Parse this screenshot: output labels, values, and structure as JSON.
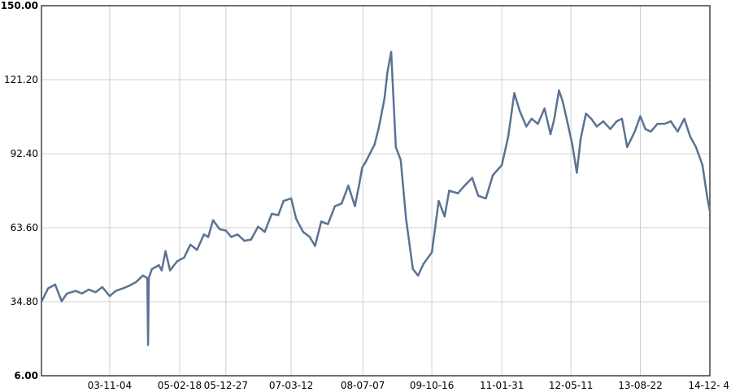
{
  "chart_data": {
    "type": "line",
    "title": "",
    "xlabel": "",
    "ylabel": "",
    "ylim": [
      6.0,
      150.0
    ],
    "xlim": [
      "2002-08-01",
      "2014-12-04"
    ],
    "grid": true,
    "y_ticks": [
      "6.00",
      "34.80",
      "63.60",
      "92.40",
      "121.20",
      "150.00"
    ],
    "x_ticks": [
      "03-11-04",
      "05-02-18",
      "05-12-27",
      "07-03-12",
      "08-07-07",
      "09-10-16",
      "11-01-31",
      "12-05-11",
      "13-08-22",
      "14-12- 4"
    ],
    "x_tick_dates": [
      "2003-11-04",
      "2005-02-18",
      "2005-12-27",
      "2007-03-12",
      "2008-07-07",
      "2009-10-16",
      "2011-01-31",
      "2012-05-11",
      "2013-08-22",
      "2014-12-04"
    ],
    "colors": {
      "line": "#5a7394",
      "grid": "#d0d0d0",
      "axis": "#404040"
    },
    "series": [
      {
        "x": [
          "2002-08-01",
          "2002-09-15",
          "2002-11-01",
          "2002-12-15",
          "2003-01-20",
          "2003-03-20",
          "2003-05-01",
          "2003-06-15",
          "2003-08-01",
          "2003-09-15",
          "2003-11-04",
          "2003-12-15",
          "2004-02-01",
          "2004-03-15",
          "2004-05-01",
          "2004-06-15",
          "2004-07-15",
          "2004-07-20",
          "2004-07-25",
          "2004-08-15",
          "2004-10-01",
          "2004-10-20",
          "2004-11-15",
          "2004-12-15",
          "2005-02-01",
          "2005-03-20",
          "2005-05-01",
          "2005-06-15",
          "2005-08-01",
          "2005-08-30",
          "2005-10-01",
          "2005-11-15",
          "2005-12-27",
          "2006-02-01",
          "2006-03-15",
          "2006-05-01",
          "2006-06-15",
          "2006-08-01",
          "2006-09-15",
          "2006-11-01",
          "2006-12-15",
          "2007-01-20",
          "2007-03-12",
          "2007-04-15",
          "2007-06-01",
          "2007-07-15",
          "2007-08-20",
          "2007-10-01",
          "2007-11-15",
          "2008-01-01",
          "2008-02-15",
          "2008-04-01",
          "2008-05-15",
          "2008-06-15",
          "2008-07-03",
          "2008-07-25",
          "2008-08-20",
          "2008-09-25",
          "2008-10-25",
          "2008-12-01",
          "2008-12-20",
          "2009-01-15",
          "2009-02-15",
          "2009-03-20",
          "2009-04-25",
          "2009-06-10",
          "2009-07-15",
          "2009-08-20",
          "2009-10-16",
          "2009-12-01",
          "2010-01-10",
          "2010-02-10",
          "2010-04-10",
          "2010-05-25",
          "2010-07-15",
          "2010-08-25",
          "2010-10-15",
          "2010-12-01",
          "2011-01-31",
          "2011-03-15",
          "2011-04-25",
          "2011-06-01",
          "2011-07-15",
          "2011-08-20",
          "2011-10-01",
          "2011-11-15",
          "2011-12-25",
          "2012-01-20",
          "2012-02-20",
          "2012-03-15",
          "2012-04-20",
          "2012-05-20",
          "2012-06-20",
          "2012-07-15",
          "2012-08-20",
          "2012-09-25",
          "2012-11-01",
          "2012-12-15",
          "2013-02-01",
          "2013-03-15",
          "2013-04-20",
          "2013-05-25",
          "2013-06-20",
          "2013-07-15",
          "2013-08-22",
          "2013-09-25",
          "2013-11-01",
          "2013-12-15",
          "2014-02-01",
          "2014-03-15",
          "2014-05-01",
          "2014-06-15",
          "2014-07-25",
          "2014-09-01",
          "2014-10-15",
          "2014-11-15",
          "2014-12-04"
        ],
        "y": [
          34.8,
          40.0,
          41.5,
          35.0,
          38.0,
          39.0,
          38.0,
          39.5,
          38.5,
          40.5,
          37.0,
          39.0,
          40.0,
          41.0,
          42.5,
          45.0,
          44.0,
          18.0,
          44.0,
          47.5,
          49.0,
          47.0,
          54.5,
          47.0,
          50.5,
          52.0,
          57.0,
          55.0,
          61.0,
          60.0,
          66.5,
          63.0,
          62.5,
          60.0,
          61.0,
          58.5,
          59.0,
          64.0,
          62.0,
          69.0,
          68.5,
          74.0,
          75.0,
          67.0,
          62.0,
          60.0,
          56.5,
          66.0,
          65.0,
          72.0,
          73.0,
          80.0,
          72.0,
          81.0,
          87.0,
          89.0,
          92.0,
          96.0,
          103.0,
          114.0,
          124.0,
          132.0,
          95.0,
          90.0,
          67.0,
          47.5,
          45.0,
          49.5,
          54.0,
          74.0,
          68.0,
          78.0,
          77.0,
          80.0,
          83.0,
          76.0,
          75.0,
          84.0,
          88.0,
          99.0,
          116.0,
          109.0,
          103.0,
          106.0,
          104.0,
          110.0,
          100.0,
          106.0,
          117.0,
          113.0,
          104.0,
          96.0,
          85.0,
          98.0,
          108.0,
          106.0,
          103.0,
          105.0,
          102.0,
          105.0,
          106.0,
          95.0,
          98.0,
          101.0,
          107.0,
          102.0,
          101.0,
          104.0,
          104.0,
          105.0,
          101.0,
          106.0,
          99.0,
          95.0,
          88.0,
          76.0,
          70.0
        ]
      }
    ]
  }
}
